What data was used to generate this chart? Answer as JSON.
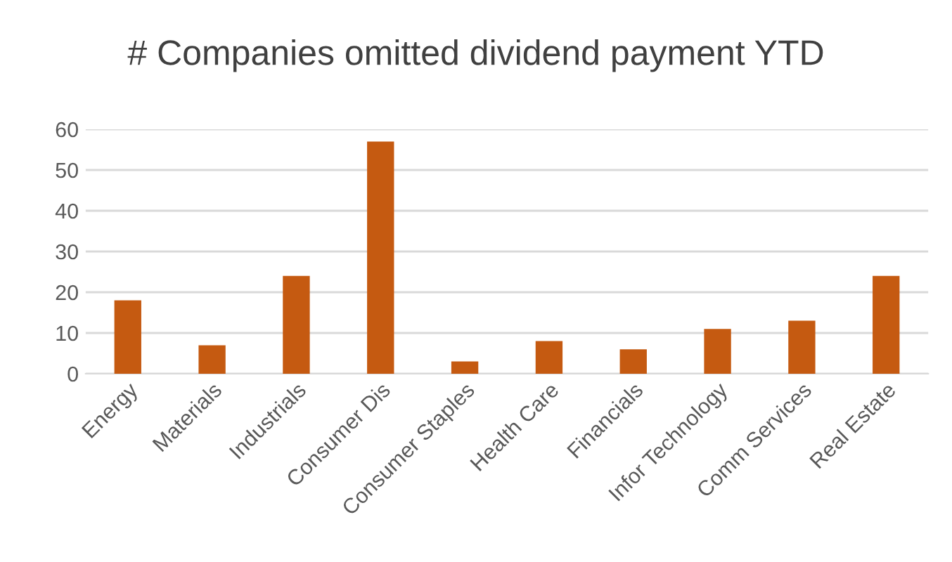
{
  "chart_data": {
    "type": "bar",
    "title": "# Companies omitted dividend payment YTD",
    "categories": [
      "Energy",
      "Materials",
      "Industrials",
      "Consumer Dis",
      "Consumer Staples",
      "Health Care",
      "Financials",
      "Infor Technology",
      "Comm Services",
      "Real Estate"
    ],
    "values": [
      18,
      7,
      24,
      57,
      3,
      8,
      6,
      11,
      13,
      24
    ],
    "color": "#c55a11",
    "ylim": [
      0,
      60
    ],
    "yticks": [
      0,
      10,
      20,
      30,
      40,
      50,
      60
    ],
    "grid": "y"
  }
}
